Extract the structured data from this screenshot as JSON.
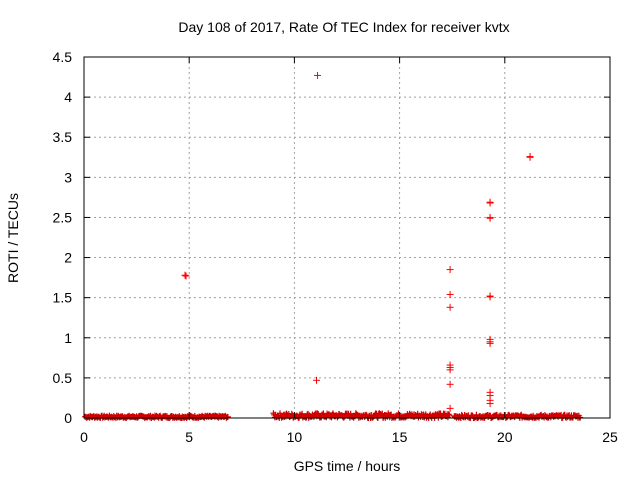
{
  "chart_data": {
    "type": "scatter",
    "title": "Day 108 of 2017, Rate Of TEC Index for receiver kvtx",
    "xlabel": "GPS time / hours",
    "ylabel": "ROTI / TECUs",
    "xlim": [
      0,
      25
    ],
    "ylim": [
      0,
      4.5
    ],
    "xticks": [
      "0",
      "5",
      "10",
      "15",
      "20",
      "25"
    ],
    "yticks": [
      "0",
      "0.5",
      "1",
      "1.5",
      "2",
      "2.5",
      "3",
      "3.5",
      "4",
      "4.5"
    ],
    "grid": true,
    "marker": "+",
    "color": "#ff0000",
    "baseline_segments": [
      {
        "x_start": 0.05,
        "x_end": 6.85,
        "y_min": 0.0,
        "y_max": 0.03
      },
      {
        "x_start": 9.0,
        "x_end": 17.4,
        "y_min": 0.0,
        "y_max": 0.06
      },
      {
        "x_start": 17.6,
        "x_end": 23.6,
        "y_min": 0.0,
        "y_max": 0.04
      }
    ],
    "outliers": [
      {
        "x": 4.8,
        "y": 1.78
      },
      {
        "x": 4.85,
        "y": 1.77
      },
      {
        "x": 11.1,
        "y": 4.27
      },
      {
        "x": 11.05,
        "y": 0.47
      },
      {
        "x": 17.4,
        "y": 1.85
      },
      {
        "x": 17.4,
        "y": 1.54
      },
      {
        "x": 17.4,
        "y": 1.38
      },
      {
        "x": 17.4,
        "y": 0.66
      },
      {
        "x": 17.4,
        "y": 0.63
      },
      {
        "x": 17.4,
        "y": 0.6
      },
      {
        "x": 17.4,
        "y": 0.42
      },
      {
        "x": 17.4,
        "y": 0.12
      },
      {
        "x": 19.3,
        "y": 2.69
      },
      {
        "x": 19.3,
        "y": 2.68
      },
      {
        "x": 19.3,
        "y": 2.5
      },
      {
        "x": 19.3,
        "y": 2.49
      },
      {
        "x": 19.3,
        "y": 1.52
      },
      {
        "x": 19.3,
        "y": 1.51
      },
      {
        "x": 19.3,
        "y": 0.98
      },
      {
        "x": 19.3,
        "y": 0.95
      },
      {
        "x": 19.3,
        "y": 0.93
      },
      {
        "x": 19.3,
        "y": 0.32
      },
      {
        "x": 19.3,
        "y": 0.28
      },
      {
        "x": 19.3,
        "y": 0.22
      },
      {
        "x": 19.3,
        "y": 0.18
      },
      {
        "x": 21.2,
        "y": 3.26
      },
      {
        "x": 21.2,
        "y": 3.25
      }
    ]
  }
}
